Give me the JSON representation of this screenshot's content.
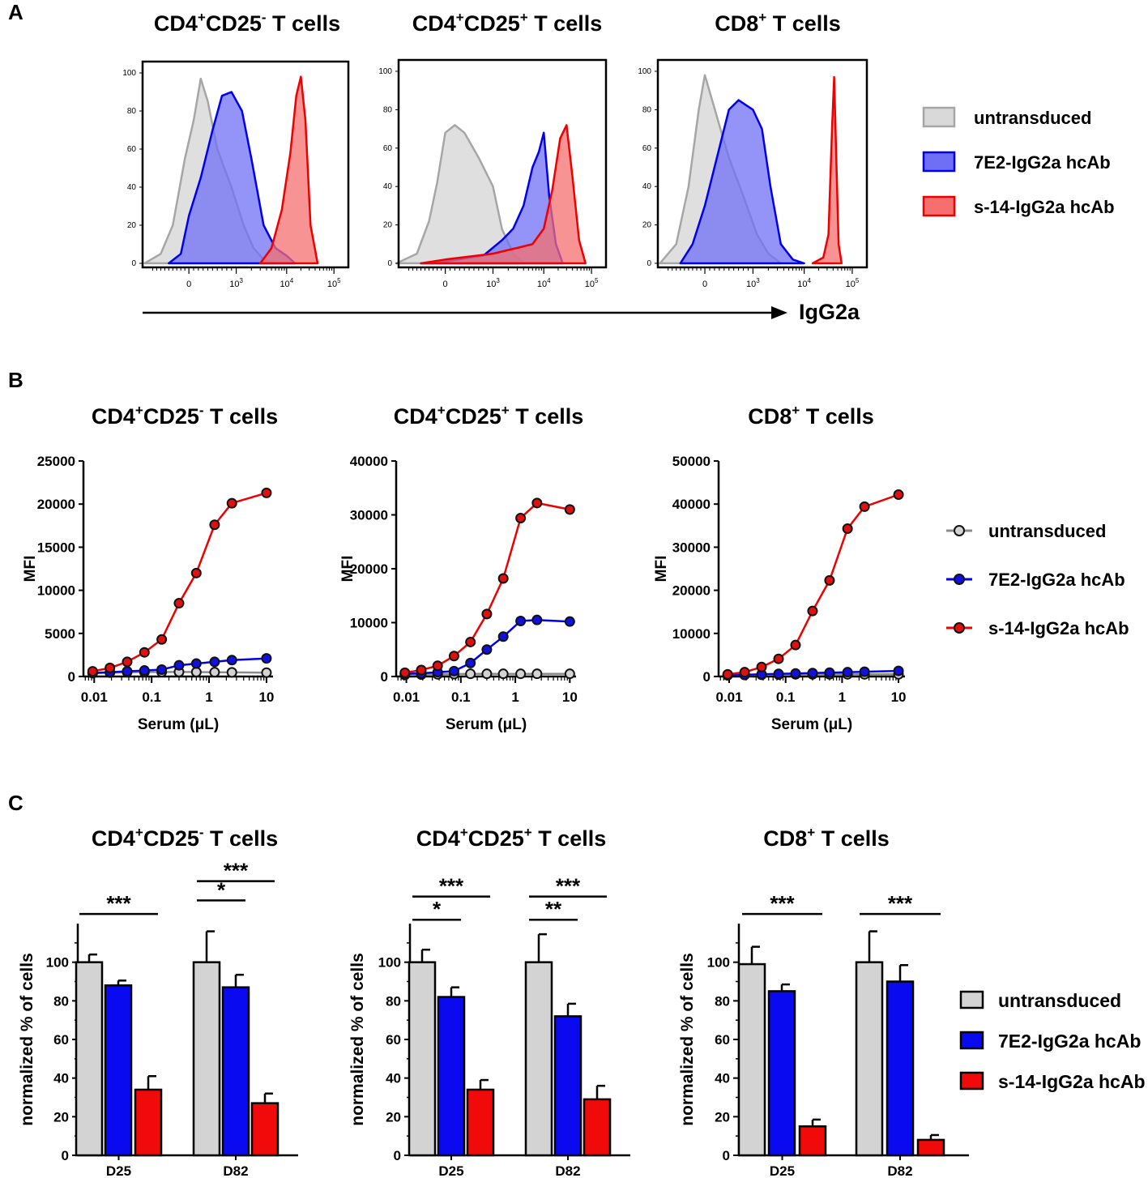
{
  "panel_labels": [
    "A",
    "B",
    "C"
  ],
  "colors": {
    "untransduced_fill": "#d9d9d9",
    "untransduced_line": "#a6a6a6",
    "untransduced_marker": "#d3d3d3",
    "blue_fill": "#6f6ff5",
    "blue_line": "#0000ee",
    "red_fill": "#f56f6f",
    "red_line": "#ee0000",
    "bar_gray": "#d3d3d3",
    "bar_blue": "#0a0af0",
    "bar_red": "#f00a0a"
  },
  "panel_a": {
    "x_axis_label": "IgG2a",
    "titles": [
      {
        "main1": "CD4",
        "sup1": "+",
        "main2": "CD25",
        "sup2": "-",
        "main3": " T cells"
      },
      {
        "main1": "CD4",
        "sup1": "+",
        "main2": "CD25",
        "sup2": "+",
        "main3": " T cells"
      },
      {
        "main1": "CD8",
        "sup1": "+",
        "main2": "",
        "sup2": "",
        "main3": " T cells"
      }
    ],
    "y_ticks": [
      "0",
      "20",
      "40",
      "60",
      "80",
      "100"
    ],
    "x_ticks": [
      {
        "base": "0",
        "exp": ""
      },
      {
        "base": "10",
        "exp": "3"
      },
      {
        "base": "10",
        "exp": "4"
      },
      {
        "base": "10",
        "exp": "5"
      }
    ],
    "legend": [
      "untransduced",
      "7E2-IgG2a hcAb",
      "s-14-IgG2a hcAb"
    ]
  },
  "chart_data": [
    {
      "type": "area",
      "panel": "A",
      "title": "CD4+CD25- T cells",
      "xlabel": "IgG2a",
      "ylabel": "",
      "ylim": [
        0,
        100
      ],
      "x_scale": "biexponential (0, 10^3, 10^4, 10^5)",
      "series": [
        {
          "name": "untransduced",
          "x": [
            -1100,
            -700,
            -400,
            -100,
            100,
            250,
            400,
            600,
            900,
            1400,
            2200,
            3500,
            6000
          ],
          "values": [
            0,
            5,
            20,
            55,
            75,
            97,
            85,
            60,
            40,
            20,
            8,
            2,
            0
          ]
        },
        {
          "name": "7E2-IgG2a hcAb",
          "x": [
            -500,
            -200,
            0,
            250,
            500,
            700,
            900,
            1300,
            2000,
            3500,
            6000,
            10000,
            15000
          ],
          "values": [
            0,
            5,
            25,
            45,
            70,
            88,
            90,
            80,
            55,
            20,
            8,
            4,
            0
          ]
        },
        {
          "name": "s-14-IgG2a hcAb",
          "x": [
            3000,
            5000,
            8000,
            12000,
            16000,
            20000,
            25000,
            32000,
            45000
          ],
          "values": [
            0,
            8,
            28,
            58,
            88,
            98,
            75,
            20,
            0
          ]
        }
      ]
    },
    {
      "type": "area",
      "panel": "A",
      "title": "CD4+CD25+ T cells",
      "xlabel": "IgG2a",
      "ylabel": "",
      "ylim": [
        0,
        100
      ],
      "x_scale": "biexponential (0, 10^3, 10^4, 10^5)",
      "series": [
        {
          "name": "untransduced",
          "x": [
            -1200,
            -700,
            -400,
            -200,
            0,
            200,
            400,
            700,
            1000,
            1500,
            2500,
            4000
          ],
          "values": [
            0,
            5,
            22,
            42,
            68,
            72,
            68,
            55,
            40,
            18,
            5,
            0
          ]
        },
        {
          "name": "7E2-IgG2a hcAb",
          "x": [
            -600,
            0,
            800,
            1500,
            2500,
            4000,
            6000,
            8000,
            10000,
            13000,
            18000,
            25000
          ],
          "values": [
            0,
            1,
            4,
            12,
            18,
            30,
            50,
            58,
            68,
            35,
            10,
            0
          ]
        },
        {
          "name": "s-14-IgG2a hcAb",
          "x": [
            -600,
            0,
            1000,
            3000,
            6000,
            10000,
            15000,
            22000,
            30000,
            40000,
            55000,
            75000
          ],
          "values": [
            0,
            2,
            5,
            8,
            10,
            18,
            38,
            65,
            72,
            45,
            12,
            0
          ]
        }
      ]
    },
    {
      "type": "area",
      "panel": "A",
      "title": "CD8+ T cells",
      "xlabel": "IgG2a",
      "ylabel": "",
      "ylim": [
        0,
        100
      ],
      "x_scale": "biexponential (0, 10^3, 10^4, 10^5)",
      "series": [
        {
          "name": "untransduced",
          "x": [
            -1100,
            -700,
            -400,
            -150,
            0,
            150,
            300,
            500,
            800,
            1200,
            2000,
            3500
          ],
          "values": [
            0,
            10,
            40,
            80,
            98,
            85,
            72,
            55,
            35,
            15,
            5,
            0
          ]
        },
        {
          "name": "7E2-IgG2a hcAb",
          "x": [
            -600,
            -300,
            0,
            250,
            500,
            700,
            1000,
            1500,
            2200,
            3500,
            6000,
            10000
          ],
          "values": [
            0,
            10,
            30,
            55,
            80,
            85,
            80,
            70,
            40,
            10,
            2,
            0
          ]
        },
        {
          "name": "s-14-IgG2a hcAb",
          "x": [
            15000,
            25000,
            32000,
            38000,
            42000,
            46000,
            52000,
            60000
          ],
          "values": [
            0,
            3,
            15,
            70,
            97,
            60,
            10,
            0
          ]
        }
      ]
    },
    {
      "type": "line",
      "panel": "B",
      "title": "CD4+CD25- T cells",
      "xlabel": "Serum (μL)",
      "ylabel": "MFI",
      "x_scale": "log",
      "xlim": [
        0.0065,
        13
      ],
      "ylim": [
        0,
        25000
      ],
      "y_ticks": [
        "0",
        "5000",
        "10000",
        "15000",
        "20000",
        "25000"
      ],
      "x_ticks": [
        "0.01",
        "0.1",
        "1",
        "10"
      ],
      "x": [
        0.0094,
        0.0188,
        0.0375,
        0.075,
        0.15,
        0.3,
        0.6,
        1.25,
        2.5,
        10
      ],
      "series": [
        {
          "name": "untransduced",
          "values": [
            400,
            450,
            500,
            520,
            520,
            530,
            520,
            500,
            480,
            450
          ]
        },
        {
          "name": "7E2-IgG2a hcAb",
          "values": [
            400,
            500,
            600,
            700,
            800,
            1300,
            1500,
            1700,
            1900,
            2100
          ]
        },
        {
          "name": "s-14-IgG2a hcAb",
          "values": [
            600,
            1000,
            1700,
            2800,
            4300,
            8500,
            12000,
            17600,
            20100,
            21300
          ]
        }
      ]
    },
    {
      "type": "line",
      "panel": "B",
      "title": "CD4+CD25+ T cells",
      "xlabel": "Serum (μL)",
      "ylabel": "MFI",
      "x_scale": "log",
      "xlim": [
        0.0065,
        13
      ],
      "ylim": [
        0,
        40000
      ],
      "y_ticks": [
        "0",
        "10000",
        "20000",
        "30000",
        "40000"
      ],
      "x_ticks": [
        "0.01",
        "0.1",
        "1",
        "10"
      ],
      "x": [
        0.0094,
        0.0188,
        0.0375,
        0.075,
        0.15,
        0.3,
        0.6,
        1.25,
        2.5,
        10
      ],
      "series": [
        {
          "name": "untransduced",
          "values": [
            300,
            350,
            400,
            450,
            500,
            500,
            500,
            500,
            500,
            500
          ]
        },
        {
          "name": "7E2-IgG2a hcAb",
          "values": [
            500,
            600,
            800,
            1000,
            2500,
            5000,
            7400,
            10300,
            10500,
            10200
          ]
        },
        {
          "name": "s-14-IgG2a hcAb",
          "values": [
            700,
            1200,
            2000,
            3800,
            6400,
            11600,
            18200,
            29400,
            32200,
            31000
          ]
        }
      ]
    },
    {
      "type": "line",
      "panel": "B",
      "title": "CD8+ T cells",
      "xlabel": "Serum (μL)",
      "ylabel": "MFI",
      "x_scale": "log",
      "xlim": [
        0.0065,
        13
      ],
      "ylim": [
        0,
        50000
      ],
      "y_ticks": [
        "0",
        "10000",
        "20000",
        "30000",
        "40000",
        "50000"
      ],
      "x_ticks": [
        "0.01",
        "0.1",
        "1",
        "10"
      ],
      "x": [
        0.0094,
        0.0188,
        0.0375,
        0.075,
        0.15,
        0.3,
        0.6,
        1.25,
        2.5,
        10
      ],
      "series": [
        {
          "name": "untransduced",
          "values": [
            300,
            350,
            400,
            450,
            500,
            500,
            500,
            500,
            500,
            500
          ]
        },
        {
          "name": "7E2-IgG2a hcAb",
          "values": [
            300,
            400,
            500,
            600,
            700,
            800,
            900,
            1000,
            1100,
            1300
          ]
        },
        {
          "name": "s-14-IgG2a hcAb",
          "values": [
            500,
            1000,
            2200,
            4100,
            7300,
            15200,
            22300,
            34300,
            39400,
            42200
          ]
        }
      ]
    },
    {
      "type": "bar",
      "panel": "C",
      "title": "CD4+CD25- T cells",
      "xlabel": "",
      "ylabel": "normalized % of cells",
      "ylim": [
        0,
        120
      ],
      "y_ticks": [
        "0",
        "20",
        "40",
        "60",
        "80",
        "100"
      ],
      "categories": [
        "D25",
        "D82"
      ],
      "series": [
        {
          "name": "untransduced",
          "values": [
            100,
            100
          ],
          "errors": [
            4,
            16
          ]
        },
        {
          "name": "7E2-IgG2a hcAb",
          "values": [
            88,
            87
          ],
          "errors": [
            2.5,
            6.5
          ]
        },
        {
          "name": "s-14-IgG2a hcAb",
          "values": [
            34,
            27
          ],
          "errors": [
            7,
            5
          ]
        }
      ],
      "significance": [
        {
          "category": 0,
          "from": 0,
          "to": 2,
          "label": "***",
          "level": 125
        },
        {
          "category": 1,
          "from": 0,
          "to": 1,
          "label": "*",
          "level": 132
        },
        {
          "category": 1,
          "from": 0,
          "to": 2,
          "label": "***",
          "level": 142
        }
      ]
    },
    {
      "type": "bar",
      "panel": "C",
      "title": "CD4+CD25+ T cells",
      "xlabel": "",
      "ylabel": "normalized % of cells",
      "ylim": [
        0,
        120
      ],
      "y_ticks": [
        "0",
        "20",
        "40",
        "60",
        "80",
        "100"
      ],
      "categories": [
        "D25",
        "D82"
      ],
      "series": [
        {
          "name": "untransduced",
          "values": [
            100,
            100
          ],
          "errors": [
            6.5,
            14.5
          ]
        },
        {
          "name": "7E2-IgG2a hcAb",
          "values": [
            82,
            72
          ],
          "errors": [
            5,
            6.5
          ]
        },
        {
          "name": "s-14-IgG2a hcAb",
          "values": [
            34,
            29
          ],
          "errors": [
            5,
            7
          ]
        }
      ],
      "significance": [
        {
          "category": 0,
          "from": 0,
          "to": 1,
          "label": "*",
          "level": 122
        },
        {
          "category": 0,
          "from": 0,
          "to": 2,
          "label": "***",
          "level": 134
        },
        {
          "category": 1,
          "from": 0,
          "to": 1,
          "label": "**",
          "level": 122
        },
        {
          "category": 1,
          "from": 0,
          "to": 2,
          "label": "***",
          "level": 134
        }
      ]
    },
    {
      "type": "bar",
      "panel": "C",
      "title": "CD8+ T cells",
      "xlabel": "",
      "ylabel": "normalized % of cells",
      "ylim": [
        0,
        120
      ],
      "y_ticks": [
        "0",
        "20",
        "40",
        "60",
        "80",
        "100"
      ],
      "categories": [
        "D25",
        "D82"
      ],
      "series": [
        {
          "name": "untransduced",
          "values": [
            99,
            100
          ],
          "errors": [
            9,
            16
          ]
        },
        {
          "name": "7E2-IgG2a hcAb",
          "values": [
            85,
            90
          ],
          "errors": [
            3.5,
            8.5
          ]
        },
        {
          "name": "s-14-IgG2a hcAb",
          "values": [
            15,
            8
          ],
          "errors": [
            3.5,
            2.5
          ]
        }
      ],
      "significance": [
        {
          "category": 0,
          "from": 0,
          "to": 2,
          "label": "***",
          "level": 125
        },
        {
          "category": 1,
          "from": 0,
          "to": 2,
          "label": "***",
          "level": 125
        }
      ]
    }
  ]
}
